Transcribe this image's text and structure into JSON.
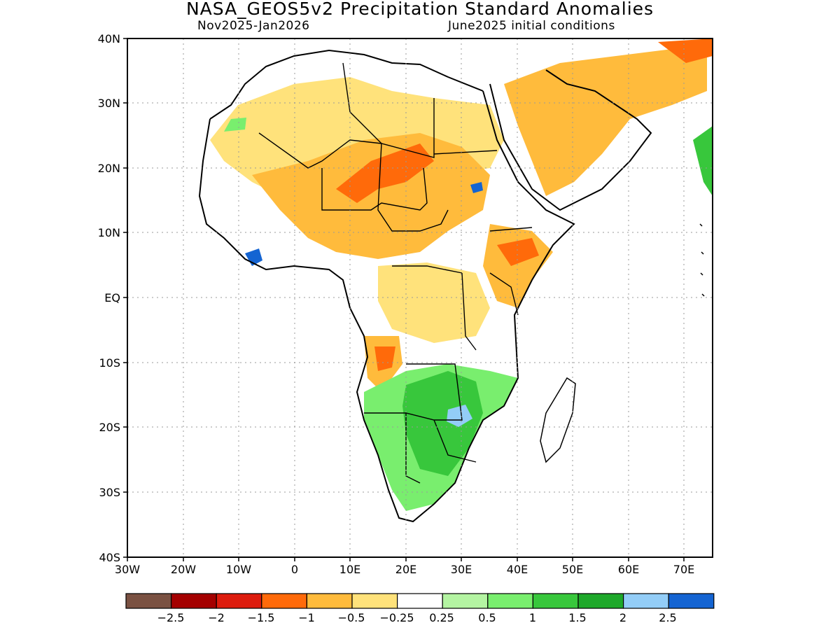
{
  "header": {
    "title": "NASA_GEOS5v2 Precipitation Standard Anomalies",
    "period": "Nov2025-Jan2026",
    "init": "June2025 initial conditions"
  },
  "axes": {
    "lat_labels": [
      "40N",
      "30N",
      "20N",
      "10N",
      "EQ",
      "10S",
      "20S",
      "30S",
      "40S"
    ],
    "lon_labels": [
      "30W",
      "20W",
      "10W",
      "0",
      "10E",
      "20E",
      "30E",
      "40E",
      "50E",
      "60E",
      "70E"
    ],
    "lat_range": [
      -40,
      40
    ],
    "lon_range": [
      -30,
      75
    ],
    "grid": "dotted"
  },
  "legend": {
    "labels": [
      "−2.5",
      "−2",
      "−1.5",
      "−1",
      "−0.5",
      "−0.25",
      "0.25",
      "0.5",
      "1",
      "1.5",
      "2",
      "2.5"
    ],
    "colors": [
      "#7a5142",
      "#a40000",
      "#dd1c0e",
      "#ff6a0a",
      "#ffbb3c",
      "#ffe27b",
      "#ffffff",
      "#b4f4a2",
      "#79ee6e",
      "#38c73c",
      "#1ea82a",
      "#93cdf7",
      "#1464d2"
    ],
    "placement": "bottom"
  }
}
